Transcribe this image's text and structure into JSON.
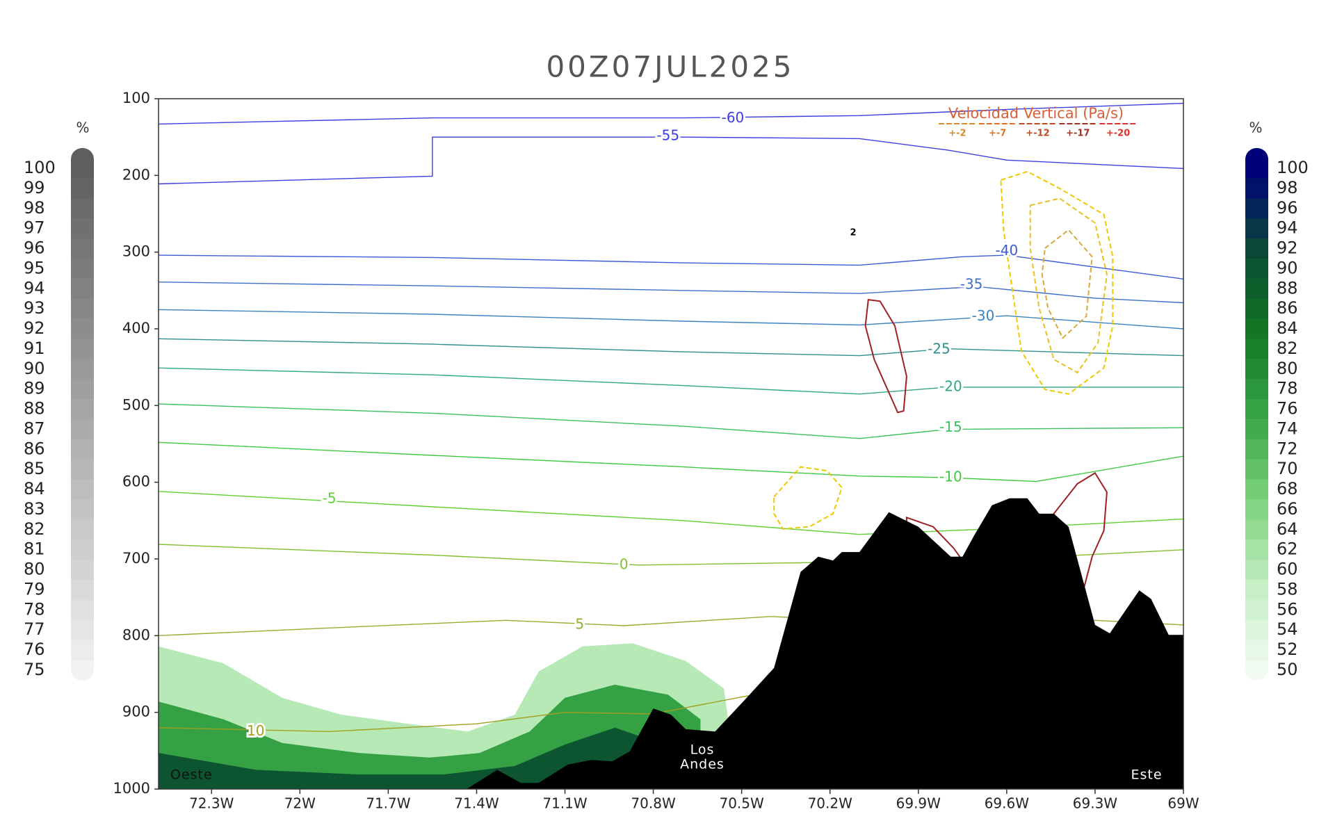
{
  "chart_data": {
    "type": "cross_section",
    "title": "00Z07JUL2025",
    "xlim": [
      -72.48,
      -69.0
    ],
    "ylim": [
      1000,
      100
    ],
    "xticks": [
      {
        "value": -72.3,
        "label": "72.3W"
      },
      {
        "value": -72.0,
        "label": "72W"
      },
      {
        "value": -71.7,
        "label": "71.7W"
      },
      {
        "value": -71.4,
        "label": "71.4W"
      },
      {
        "value": -71.1,
        "label": "71.1W"
      },
      {
        "value": -70.8,
        "label": "70.8W"
      },
      {
        "value": -70.5,
        "label": "70.5W"
      },
      {
        "value": -70.2,
        "label": "70.2W"
      },
      {
        "value": -69.9,
        "label": "69.9W"
      },
      {
        "value": -69.6,
        "label": "69.6W"
      },
      {
        "value": -69.3,
        "label": "69.3W"
      },
      {
        "value": -69.0,
        "label": "69W"
      }
    ],
    "yticks": [
      100,
      200,
      300,
      400,
      500,
      600,
      700,
      800,
      900,
      1000
    ],
    "colorbars": [
      {
        "unit": "%",
        "values": [
          100,
          99,
          98,
          97,
          96,
          95,
          94,
          93,
          92,
          91,
          90,
          89,
          88,
          87,
          86,
          85,
          84,
          83,
          82,
          81,
          80,
          79,
          78,
          77,
          76,
          75
        ],
        "color_stops": [
          "#5e5e5e",
          "#f2f2f2"
        ]
      },
      {
        "unit": "%",
        "values": [
          100,
          98,
          96,
          94,
          92,
          90,
          88,
          86,
          84,
          82,
          80,
          78,
          76,
          74,
          72,
          70,
          68,
          66,
          64,
          62,
          60,
          58,
          56,
          54,
          52,
          50
        ],
        "color_stops": [
          "#00007a",
          "#0b4a35",
          "#137a22",
          "#3aa64a",
          "#7ed37e",
          "#c4eec4",
          "#f2fbf2"
        ]
      }
    ],
    "humidity": [
      {
        "level": 60,
        "x": [
          -72.48,
          -72.26,
          -72.06,
          -71.86,
          -71.65,
          -71.43,
          -71.27,
          -71.19,
          -71.04,
          -70.87,
          -70.69,
          -70.56,
          -70.53,
          -70.53,
          -72.48
        ],
        "y": [
          814,
          836,
          881,
          903,
          914,
          925,
          903,
          847,
          814,
          810,
          833,
          869,
          953,
          1000,
          1000
        ]
      },
      {
        "level": 76,
        "x": [
          -72.48,
          -72.26,
          -72.06,
          -71.8,
          -71.56,
          -71.39,
          -71.22,
          -71.1,
          -70.93,
          -70.75,
          -70.64,
          -70.64,
          -72.48
        ],
        "y": [
          886,
          909,
          940,
          953,
          959,
          953,
          925,
          881,
          864,
          877,
          909,
          1000,
          1000
        ]
      },
      {
        "level": 90,
        "x": [
          -72.48,
          -72.15,
          -71.8,
          -71.51,
          -71.27,
          -71.1,
          -70.93,
          -70.81,
          -70.81,
          -72.48
        ],
        "y": [
          953,
          975,
          981,
          981,
          970,
          942,
          920,
          936,
          1000,
          1000
        ]
      }
    ],
    "isotherms": [
      {
        "level": -60,
        "color": "#3c3ce0",
        "x": [
          -72.48,
          -71.55,
          -70.7,
          -70.1,
          -69.6,
          -69.0
        ],
        "y": [
          133,
          125,
          125,
          122,
          114,
          106
        ],
        "label_x": -70.53,
        "label_y": 126
      },
      {
        "level": -55,
        "color": "#3c3ce0",
        "x": [
          -72.48,
          -71.55,
          -71.55,
          -70.7,
          -70.1,
          -69.8,
          -69.6,
          -69.0
        ],
        "y": [
          211,
          201,
          150,
          150,
          152,
          167,
          180,
          191
        ],
        "label_x": -70.75,
        "label_y": 149
      },
      {
        "level": -40,
        "color": "#3c5ad8",
        "x": [
          -72.48,
          -71.55,
          -70.7,
          -70.1,
          -69.75,
          -69.6,
          -69.35,
          -69.0
        ],
        "y": [
          304,
          307,
          314,
          317,
          306,
          304,
          317,
          335
        ],
        "label_x": -69.6,
        "label_y": 299
      },
      {
        "level": -35,
        "color": "#3c6ec8",
        "x": [
          -72.48,
          -71.55,
          -70.7,
          -70.1,
          -69.7,
          -69.3,
          -69.0
        ],
        "y": [
          339,
          344,
          350,
          354,
          345,
          360,
          366
        ],
        "label_x": -69.72,
        "label_y": 343
      },
      {
        "level": -30,
        "color": "#3c82c0",
        "x": [
          -72.48,
          -71.55,
          -70.7,
          -70.1,
          -69.6,
          -69.0
        ],
        "y": [
          375,
          381,
          390,
          395,
          383,
          400
        ],
        "label_x": -69.68,
        "label_y": 384
      },
      {
        "level": -25,
        "color": "#2f9090",
        "x": [
          -72.48,
          -71.55,
          -70.7,
          -70.1,
          -69.8,
          -69.0
        ],
        "y": [
          413,
          420,
          430,
          435,
          426,
          435
        ],
        "label_x": -69.83,
        "label_y": 427
      },
      {
        "level": -20,
        "color": "#30a880",
        "x": [
          -72.48,
          -71.55,
          -70.7,
          -70.1,
          -69.8,
          -69.0
        ],
        "y": [
          451,
          460,
          474,
          485,
          476,
          476
        ],
        "label_x": -69.79,
        "label_y": 476
      },
      {
        "level": -15,
        "color": "#3cc060",
        "x": [
          -72.48,
          -71.55,
          -70.7,
          -70.1,
          -69.8,
          -69.0
        ],
        "y": [
          498,
          510,
          527,
          543,
          531,
          529
        ],
        "label_x": -69.79,
        "label_y": 529
      },
      {
        "level": -10,
        "color": "#40c840",
        "x": [
          -72.48,
          -71.55,
          -70.7,
          -70.1,
          -69.8,
          -69.5,
          -69.0
        ],
        "y": [
          548,
          565,
          580,
          592,
          594,
          599,
          566
        ],
        "label_x": -69.79,
        "label_y": 594
      },
      {
        "level": -5,
        "color": "#60d030",
        "x": [
          -72.48,
          -71.55,
          -70.7,
          -70.1,
          -69.6,
          -69.0
        ],
        "y": [
          612,
          632,
          650,
          668,
          660,
          648
        ],
        "label_x": -71.9,
        "label_y": 622
      },
      {
        "level": 0,
        "color": "#80c030",
        "x": [
          -72.48,
          -71.55,
          -70.85,
          -70.3,
          -69.6,
          -69.0
        ],
        "y": [
          681,
          695,
          708,
          705,
          700,
          688
        ],
        "label_x": -70.9,
        "label_y": 708
      },
      {
        "level": 5,
        "color": "#90b030",
        "x": [
          -72.48,
          -71.9,
          -71.3,
          -70.9,
          -70.4,
          -69.6,
          -69.3,
          -69.0
        ],
        "y": [
          800,
          790,
          780,
          787,
          775,
          790,
          780,
          786
        ],
        "label_x": -71.05,
        "label_y": 786
      },
      {
        "level": 10,
        "color": "#a0a020",
        "x": [
          -72.48,
          -71.9,
          -71.4,
          -71.1,
          -70.8,
          -70.5,
          -70.2,
          -69.0
        ],
        "y": [
          920,
          925,
          915,
          900,
          902,
          880,
          860,
          850
        ],
        "label_x": -72.15,
        "label_y": 925
      }
    ],
    "vertical_velocity": {
      "title": "Velocidad Vertical  (Pa/s)",
      "legend": [
        {
          "label": "+-2",
          "color": "#d88a2a"
        },
        {
          "label": "+-7",
          "color": "#e07020"
        },
        {
          "label": "+-12",
          "color": "#c04a20"
        },
        {
          "label": "+-17",
          "color": "#a03020"
        },
        {
          "label": "+-20",
          "color": "#e03030"
        }
      ],
      "contours": [
        {
          "level": -2,
          "color": "#f0c800",
          "x": [
            -69.62,
            -69.53,
            -69.42,
            -69.27,
            -69.24,
            -69.24,
            -69.27,
            -69.39,
            -69.47,
            -69.55,
            -69.58,
            -69.61,
            -69.62
          ],
          "y": [
            206,
            195,
            217,
            251,
            306,
            396,
            451,
            485,
            479,
            429,
            351,
            273,
            206
          ]
        },
        {
          "level": -7,
          "color": "#e8c020",
          "x": [
            -69.52,
            -69.42,
            -69.3,
            -69.26,
            -69.29,
            -69.36,
            -69.44,
            -69.49,
            -69.52,
            -69.52
          ],
          "y": [
            239,
            230,
            262,
            329,
            418,
            457,
            440,
            373,
            295,
            239
          ]
        },
        {
          "level": -12,
          "color": "#d8a838",
          "x": [
            -69.47,
            -69.39,
            -69.31,
            -69.33,
            -69.41,
            -69.46,
            -69.48,
            -69.47
          ],
          "y": [
            295,
            271,
            306,
            384,
            412,
            373,
            329,
            295
          ]
        },
        {
          "level": -2,
          "color": "#f0c800",
          "x": [
            -70.39,
            -70.3,
            -70.21,
            -70.16,
            -70.19,
            -70.27,
            -70.36,
            -70.39,
            -70.39
          ],
          "y": [
            619,
            580,
            585,
            607,
            641,
            658,
            661,
            641,
            619
          ]
        },
        {
          "level": 2,
          "color": "#a02020",
          "x": [
            -70.07,
            -70.03,
            -69.98,
            -69.94,
            -69.95,
            -69.97,
            -70.05,
            -70.08,
            -70.07
          ],
          "y": [
            362,
            364,
            396,
            462,
            507,
            509,
            440,
            396,
            362
          ]
        },
        {
          "level": 2,
          "color": "#a02020",
          "x": [
            -69.44,
            -69.36,
            -69.3,
            -69.26,
            -69.27,
            -69.31,
            -69.34,
            -69.39,
            -69.42,
            -69.44
          ],
          "y": [
            641,
            602,
            588,
            613,
            663,
            697,
            741,
            686,
            663,
            641
          ]
        },
        {
          "level": 2,
          "color": "#a02020",
          "x": [
            -69.94,
            -69.85,
            -69.78,
            -69.75,
            -69.75,
            -69.94,
            -69.94
          ],
          "y": [
            646,
            658,
            686,
            702,
            720,
            680,
            646
          ]
        }
      ]
    },
    "terrain": {
      "x": [
        -71.434,
        -71.33,
        -71.25,
        -71.19,
        -71.09,
        -71.01,
        -70.94,
        -70.88,
        -70.8,
        -70.74,
        -70.69,
        -70.59,
        -70.49,
        -70.39,
        -70.3,
        -70.24,
        -70.19,
        -70.16,
        -70.1,
        -70.0,
        -69.9,
        -69.79,
        -69.75,
        -69.71,
        -69.65,
        -69.59,
        -69.53,
        -69.49,
        -69.44,
        -69.39,
        -69.3,
        -69.25,
        -69.15,
        -69.11,
        -69.05,
        -69.0
      ],
      "y": [
        1000,
        975,
        992,
        992,
        968,
        962,
        964,
        951,
        895,
        903,
        922,
        925,
        884,
        842,
        717,
        697,
        702,
        691,
        691,
        639,
        658,
        697,
        697,
        669,
        630,
        621,
        621,
        641,
        641,
        658,
        786,
        797,
        741,
        752,
        799,
        799
      ]
    },
    "annotations": {
      "west": "Oeste",
      "mountains": [
        "Los",
        "Andes"
      ],
      "east": "Este",
      "marker": "2"
    }
  }
}
